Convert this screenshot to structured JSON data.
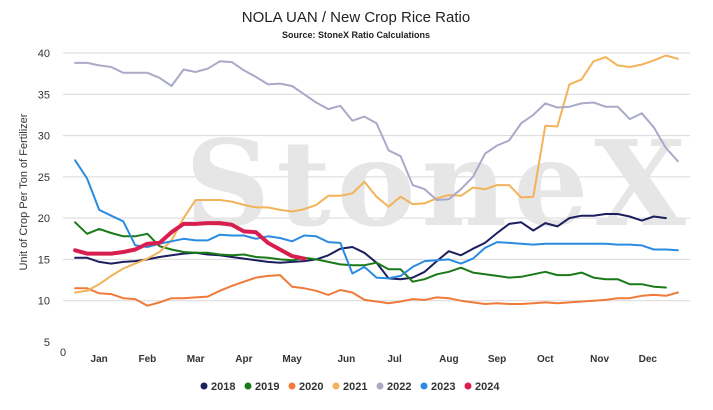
{
  "chart_data": {
    "type": "line",
    "title": "NOLA UAN / New Crop Rice Ratio",
    "subtitle": "Source: StoneX Ratio Calculations",
    "watermark": "StoneX",
    "watermark_mark": "®",
    "ylabel": "Unit of Crop Per Ton of Fertilizer",
    "xlabel": "",
    "ylim": [
      5,
      40
    ],
    "yticks": [
      5,
      10,
      15,
      20,
      25,
      30,
      35,
      40
    ],
    "xlim": [
      0,
      52
    ],
    "x_origin_label": "0",
    "x_ticks": [
      {
        "week": 3,
        "label": "Jan"
      },
      {
        "week": 7,
        "label": "Feb"
      },
      {
        "week": 11,
        "label": "Mar"
      },
      {
        "week": 15,
        "label": "Apr"
      },
      {
        "week": 19,
        "label": "May"
      },
      {
        "week": 23.5,
        "label": "Jun"
      },
      {
        "week": 27.5,
        "label": "Jul"
      },
      {
        "week": 32,
        "label": "Aug"
      },
      {
        "week": 36,
        "label": "Sep"
      },
      {
        "week": 40,
        "label": "Oct"
      },
      {
        "week": 44.5,
        "label": "Nov"
      },
      {
        "week": 48.5,
        "label": "Dec"
      }
    ],
    "grid": true,
    "legend_position": "bottom",
    "series": [
      {
        "name": "2018",
        "color": "#1b1f5e",
        "x": [
          1,
          2,
          3,
          4,
          5,
          6,
          7,
          8,
          9,
          10,
          11,
          12,
          13,
          14,
          15,
          16,
          17,
          18,
          19,
          20,
          21,
          22,
          23,
          24,
          25,
          26,
          27,
          28,
          29,
          30,
          31,
          32,
          33,
          34,
          35,
          36,
          37,
          38,
          39,
          40,
          41,
          42,
          43,
          44,
          45,
          46,
          47,
          48,
          49,
          50
        ],
        "y": [
          15.2,
          15.2,
          14.7,
          14.5,
          14.7,
          14.8,
          15.0,
          15.3,
          15.5,
          15.7,
          15.8,
          15.6,
          15.5,
          15.3,
          15.1,
          14.9,
          14.7,
          14.6,
          14.7,
          14.8,
          15.0,
          15.5,
          16.3,
          16.5,
          15.8,
          14.6,
          12.7,
          12.6,
          12.8,
          13.5,
          14.8,
          16.0,
          15.5,
          16.3,
          17.0,
          18.2,
          19.3,
          19.5,
          18.5,
          19.4,
          19.0,
          20.0,
          20.3,
          20.3,
          20.5,
          20.5,
          20.2,
          19.7,
          20.2,
          20.0
        ]
      },
      {
        "name": "2019",
        "color": "#1a7a1a",
        "x": [
          1,
          2,
          3,
          4,
          5,
          6,
          7,
          8,
          9,
          10,
          11,
          12,
          13,
          14,
          15,
          16,
          17,
          18,
          19,
          20,
          21,
          22,
          23,
          24,
          25,
          26,
          27,
          28,
          29,
          30,
          31,
          32,
          33,
          34,
          35,
          36,
          37,
          38,
          39,
          40,
          41,
          42,
          43,
          44,
          45,
          46,
          47,
          48,
          49,
          50
        ],
        "y": [
          19.5,
          18.1,
          18.7,
          18.2,
          17.8,
          17.8,
          18.1,
          16.6,
          16.2,
          15.9,
          15.8,
          15.8,
          15.6,
          15.5,
          15.6,
          15.3,
          15.2,
          15.0,
          14.9,
          15.2,
          15.0,
          14.7,
          14.4,
          14.3,
          14.3,
          14.6,
          13.8,
          13.8,
          12.3,
          12.6,
          13.2,
          13.5,
          14.0,
          13.4,
          13.2,
          13.0,
          12.8,
          12.9,
          13.2,
          13.5,
          13.1,
          13.1,
          13.4,
          12.8,
          12.6,
          12.6,
          12.0,
          12.0,
          11.7,
          11.6
        ]
      },
      {
        "name": "2020",
        "color": "#f07a3a",
        "x": [
          1,
          2,
          3,
          4,
          5,
          6,
          7,
          8,
          9,
          10,
          11,
          12,
          13,
          14,
          15,
          16,
          17,
          18,
          19,
          20,
          21,
          22,
          23,
          24,
          25,
          26,
          27,
          28,
          29,
          30,
          31,
          32,
          33,
          34,
          35,
          36,
          37,
          38,
          39,
          40,
          41,
          42,
          43,
          44,
          45,
          46,
          47,
          48,
          49,
          50,
          51
        ],
        "y": [
          11.5,
          11.5,
          10.9,
          10.8,
          10.3,
          10.2,
          9.4,
          9.8,
          10.3,
          10.3,
          10.4,
          10.5,
          11.2,
          11.8,
          12.3,
          12.8,
          13.0,
          13.1,
          11.7,
          11.5,
          11.2,
          10.7,
          11.3,
          11.0,
          10.1,
          9.9,
          9.7,
          9.9,
          10.2,
          10.1,
          10.4,
          10.3,
          10.0,
          9.8,
          9.6,
          9.7,
          9.6,
          9.6,
          9.7,
          9.8,
          9.7,
          9.8,
          9.9,
          10.0,
          10.1,
          10.3,
          10.3,
          10.6,
          10.7,
          10.6,
          11.0
        ]
      },
      {
        "name": "2021",
        "color": "#f2b35a",
        "x": [
          1,
          2,
          3,
          4,
          5,
          6,
          7,
          8,
          9,
          10,
          11,
          12,
          13,
          14,
          15,
          16,
          17,
          18,
          19,
          20,
          21,
          22,
          23,
          24,
          25,
          26,
          27,
          28,
          29,
          30,
          31,
          32,
          33,
          34,
          35,
          36,
          37,
          38,
          39,
          40,
          41,
          42,
          43,
          44,
          45,
          46,
          47,
          48,
          49,
          50,
          51
        ],
        "y": [
          11.0,
          11.2,
          12.0,
          13.0,
          13.9,
          14.5,
          15.1,
          15.9,
          17.3,
          20.0,
          22.2,
          22.2,
          22.2,
          22.0,
          21.6,
          21.3,
          21.3,
          21.0,
          20.8,
          21.1,
          21.6,
          22.7,
          22.7,
          23.0,
          24.4,
          22.6,
          21.4,
          22.6,
          21.7,
          21.8,
          22.4,
          22.8,
          22.7,
          23.7,
          23.5,
          24.0,
          24.0,
          22.5,
          22.6,
          31.2,
          31.1,
          36.2,
          36.8,
          39.0,
          39.5,
          38.5,
          38.3,
          38.6,
          39.1,
          39.7,
          39.3
        ]
      },
      {
        "name": "2022",
        "color": "#a9aac8",
        "x": [
          1,
          2,
          3,
          4,
          5,
          6,
          7,
          8,
          9,
          10,
          11,
          12,
          13,
          14,
          15,
          16,
          17,
          18,
          19,
          20,
          21,
          22,
          23,
          24,
          25,
          26,
          27,
          28,
          29,
          30,
          31,
          32,
          33,
          34,
          35,
          36,
          37,
          38,
          39,
          40,
          41,
          42,
          43,
          44,
          45,
          46,
          47,
          48,
          49,
          50,
          51
        ],
        "y": [
          38.8,
          38.8,
          38.5,
          38.3,
          37.6,
          37.6,
          37.6,
          37.0,
          36.0,
          38.0,
          37.7,
          38.1,
          39.0,
          38.9,
          37.9,
          37.1,
          36.2,
          36.3,
          36.0,
          35.0,
          34.0,
          33.2,
          33.6,
          31.8,
          32.3,
          31.5,
          28.2,
          27.5,
          24.0,
          23.5,
          22.2,
          22.3,
          23.5,
          25.0,
          27.8,
          28.8,
          29.4,
          31.5,
          32.5,
          33.9,
          33.4,
          33.5,
          33.9,
          34.0,
          33.5,
          33.5,
          32.0,
          32.7,
          31.0,
          28.5,
          26.9
        ]
      },
      {
        "name": "2023",
        "color": "#2a8be0",
        "x": [
          1,
          2,
          3,
          4,
          5,
          6,
          7,
          8,
          9,
          10,
          11,
          12,
          13,
          14,
          15,
          16,
          17,
          18,
          19,
          20,
          21,
          22,
          23,
          24,
          25,
          26,
          27,
          28,
          29,
          30,
          31,
          32,
          33,
          34,
          35,
          36,
          37,
          38,
          39,
          40,
          41,
          42,
          43,
          44,
          45,
          46,
          47,
          48,
          49,
          50,
          51
        ],
        "y": [
          27.0,
          24.8,
          21.0,
          20.3,
          19.6,
          16.7,
          16.5,
          16.9,
          17.2,
          17.5,
          17.3,
          17.3,
          18.0,
          17.9,
          17.9,
          17.5,
          17.8,
          17.6,
          17.2,
          17.9,
          17.8,
          17.1,
          17.0,
          13.3,
          14.1,
          12.8,
          12.7,
          13.0,
          14.1,
          14.8,
          14.9,
          15.0,
          14.5,
          15.1,
          16.4,
          17.1,
          17.0,
          16.9,
          16.8,
          16.9,
          16.9,
          16.9,
          16.9,
          16.9,
          16.9,
          16.8,
          16.8,
          16.7,
          16.2,
          16.2,
          16.1
        ]
      },
      {
        "name": "2024",
        "color": "#d81e4e",
        "x": [
          1,
          2,
          3,
          4,
          5,
          6,
          7,
          8,
          9,
          10,
          11,
          12,
          13,
          14,
          15,
          16,
          17,
          18,
          19,
          20
        ],
        "y": [
          16.1,
          15.7,
          15.7,
          15.7,
          15.9,
          16.2,
          16.9,
          17.0,
          18.3,
          19.3,
          19.3,
          19.4,
          19.4,
          19.2,
          18.4,
          18.3,
          17.0,
          16.2,
          15.4,
          15.1
        ]
      }
    ]
  }
}
